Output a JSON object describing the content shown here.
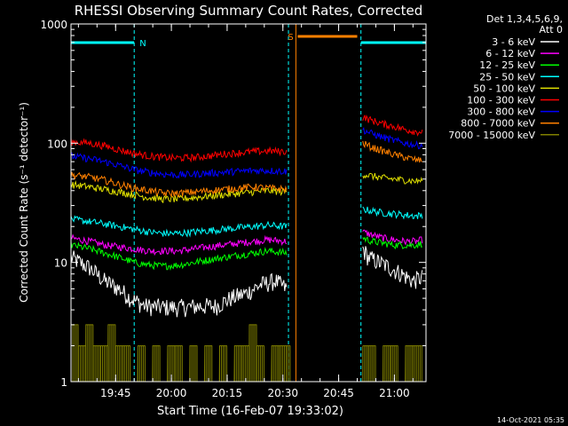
{
  "chart_data": {
    "type": "line",
    "title": "RHESSI Observing Summary Count Rates, Corrected",
    "xlabel": "Start Time (16-Feb-07 19:33:02)",
    "ylabel": "Corrected Count Rate (s⁻¹ detector⁻¹)",
    "ylog": true,
    "ylim": [
      1,
      1000
    ],
    "xlim_minutes_after_1930": [
      3.0,
      98.5
    ],
    "y_ticks": [
      1,
      10,
      100,
      1000
    ],
    "y_tick_labels": [
      "1",
      "10",
      "100",
      "1000"
    ],
    "x_ticks_minutes_after_1930": [
      15,
      30,
      45,
      60,
      75,
      90
    ],
    "x_tick_labels": [
      "19:45",
      "20:00",
      "20:15",
      "20:30",
      "20:45",
      "21:00"
    ],
    "legend_header": [
      "Det 1,3,4,5,6,9,",
      "Att 0"
    ],
    "legend_position": "right",
    "annotations": {
      "night_label": "N",
      "saa_label": "S",
      "night_boundaries_minutes": [
        3.0,
        20.0,
        61.5,
        81.0,
        98.5
      ],
      "saa_interval_minutes": [
        63.5,
        80.0
      ]
    },
    "series": [
      {
        "name": "3 - 6 keV",
        "color": "#ffffff",
        "seg1": {
          "x": [
            3,
            8,
            12,
            16,
            19,
            23,
            28,
            33,
            38,
            42,
            46,
            50,
            54,
            58,
            61
          ],
          "y": [
            11,
            9,
            7,
            6,
            5,
            4.3,
            4.2,
            4.2,
            4.3,
            4.3,
            5,
            5.5,
            6.5,
            7,
            6
          ]
        },
        "seg2": {
          "x": [
            81.5,
            83,
            86,
            89,
            92,
            95,
            97.5
          ],
          "y": [
            13,
            11,
            10,
            9,
            8,
            7,
            7.5
          ]
        }
      },
      {
        "name": "6 - 12 keV",
        "color": "#ff00ff",
        "seg1": {
          "x": [
            3,
            8,
            12,
            16,
            20,
            24,
            28,
            32,
            36,
            40,
            44,
            48,
            52,
            56,
            61
          ],
          "y": [
            16,
            15,
            14,
            13.5,
            13,
            12.5,
            12.5,
            12.5,
            13,
            13.5,
            14,
            14.5,
            15,
            15.5,
            15
          ]
        },
        "seg2": {
          "x": [
            81.5,
            84,
            87,
            90,
            93,
            96,
            97.5
          ],
          "y": [
            18,
            17,
            16,
            15.5,
            15,
            15,
            15.5
          ]
        }
      },
      {
        "name": "12 - 25 keV",
        "color": "#00ff00",
        "seg1": {
          "x": [
            3,
            8,
            12,
            16,
            20,
            24,
            28,
            32,
            36,
            40,
            44,
            48,
            52,
            56,
            61
          ],
          "y": [
            14,
            13,
            12,
            11,
            10,
            9.5,
            9.3,
            9.5,
            10,
            10.5,
            11,
            11.5,
            12,
            12.5,
            12
          ]
        },
        "seg2": {
          "x": [
            81.5,
            84,
            87,
            90,
            93,
            96,
            97.5
          ],
          "y": [
            16,
            15,
            14.5,
            14,
            14,
            14,
            14.5
          ]
        }
      },
      {
        "name": "25 - 50 keV",
        "color": "#00ffff",
        "seg1": {
          "x": [
            3,
            8,
            12,
            16,
            20,
            24,
            28,
            32,
            36,
            40,
            44,
            48,
            52,
            56,
            61
          ],
          "y": [
            23,
            22,
            21,
            20,
            19,
            18,
            17.5,
            17.5,
            18,
            18.5,
            19,
            19.5,
            20,
            20.5,
            20
          ]
        },
        "seg2": {
          "x": [
            81.5,
            84,
            87,
            90,
            93,
            96,
            97.5
          ],
          "y": [
            28,
            27,
            26,
            25.5,
            25,
            24.5,
            25
          ]
        }
      },
      {
        "name": "50 - 100 keV",
        "color": "#e0e000",
        "seg1": {
          "x": [
            3,
            8,
            12,
            16,
            20,
            24,
            28,
            32,
            36,
            40,
            44,
            48,
            52,
            56,
            61
          ],
          "y": [
            45,
            43,
            41,
            39,
            37,
            35,
            34,
            34,
            35,
            36,
            37,
            38,
            39,
            40,
            39
          ]
        },
        "seg2": {
          "x": [
            81.5,
            84,
            87,
            90,
            93,
            96,
            97.5
          ],
          "y": [
            55,
            53,
            51,
            50,
            49,
            48,
            49
          ]
        }
      },
      {
        "name": "100 - 300 keV",
        "color": "#ff0000",
        "seg1": {
          "x": [
            3,
            8,
            12,
            16,
            20,
            24,
            28,
            32,
            36,
            40,
            44,
            48,
            52,
            56,
            61
          ],
          "y": [
            103,
            100,
            95,
            88,
            82,
            78,
            76,
            75,
            76,
            78,
            81,
            83,
            85,
            86,
            85
          ]
        },
        "seg2": {
          "x": [
            81.5,
            84,
            87,
            90,
            93,
            96,
            97.5
          ],
          "y": [
            165,
            155,
            145,
            138,
            130,
            125,
            125
          ]
        }
      },
      {
        "name": "300 - 800 keV",
        "color": "#0000ff",
        "seg1": {
          "x": [
            3,
            8,
            12,
            16,
            20,
            24,
            28,
            32,
            36,
            40,
            44,
            48,
            52,
            56,
            61
          ],
          "y": [
            78,
            74,
            70,
            65,
            60,
            57,
            55,
            54,
            55,
            56,
            57,
            58,
            59,
            59,
            58
          ]
        },
        "seg2": {
          "x": [
            81.5,
            84,
            87,
            90,
            93,
            96,
            97.5
          ],
          "y": [
            130,
            120,
            112,
            105,
            100,
            96,
            97
          ]
        }
      },
      {
        "name": "800 - 7000 keV",
        "color": "#ff8000",
        "seg1": {
          "x": [
            3,
            8,
            12,
            16,
            20,
            24,
            28,
            32,
            36,
            40,
            44,
            48,
            52,
            56,
            61
          ],
          "y": [
            54,
            52,
            49,
            45,
            42,
            40,
            38,
            38,
            39,
            40,
            41,
            42,
            43,
            42,
            41
          ]
        },
        "seg2": {
          "x": [
            81.5,
            84,
            87,
            90,
            93,
            96,
            97.5
          ],
          "y": [
            100,
            92,
            86,
            80,
            76,
            72,
            72
          ]
        }
      },
      {
        "name": "7000 - 15000 keV",
        "color": "#808000",
        "seg1": {
          "x": [
            3,
            5,
            7,
            9,
            11,
            13,
            15,
            17,
            19,
            21,
            23,
            25,
            27,
            29,
            31,
            33,
            35,
            37,
            39,
            41,
            43,
            45,
            47,
            49,
            51,
            53,
            55,
            57,
            59,
            61
          ],
          "y": [
            3,
            2,
            3,
            2,
            2,
            3,
            2,
            2,
            1,
            2,
            1,
            2,
            1,
            2,
            2,
            1,
            2,
            1,
            2,
            1,
            2,
            1,
            2,
            2,
            3,
            2,
            1,
            2,
            2,
            2
          ]
        },
        "seg2": {
          "x": [
            81.5,
            83,
            85,
            87,
            89,
            91,
            93,
            95,
            97.5
          ],
          "y": [
            2,
            2,
            1,
            2,
            2,
            1,
            2,
            2,
            1
          ]
        }
      }
    ]
  },
  "footer": {
    "timestamp": "14-Oct-2021 05:35"
  }
}
